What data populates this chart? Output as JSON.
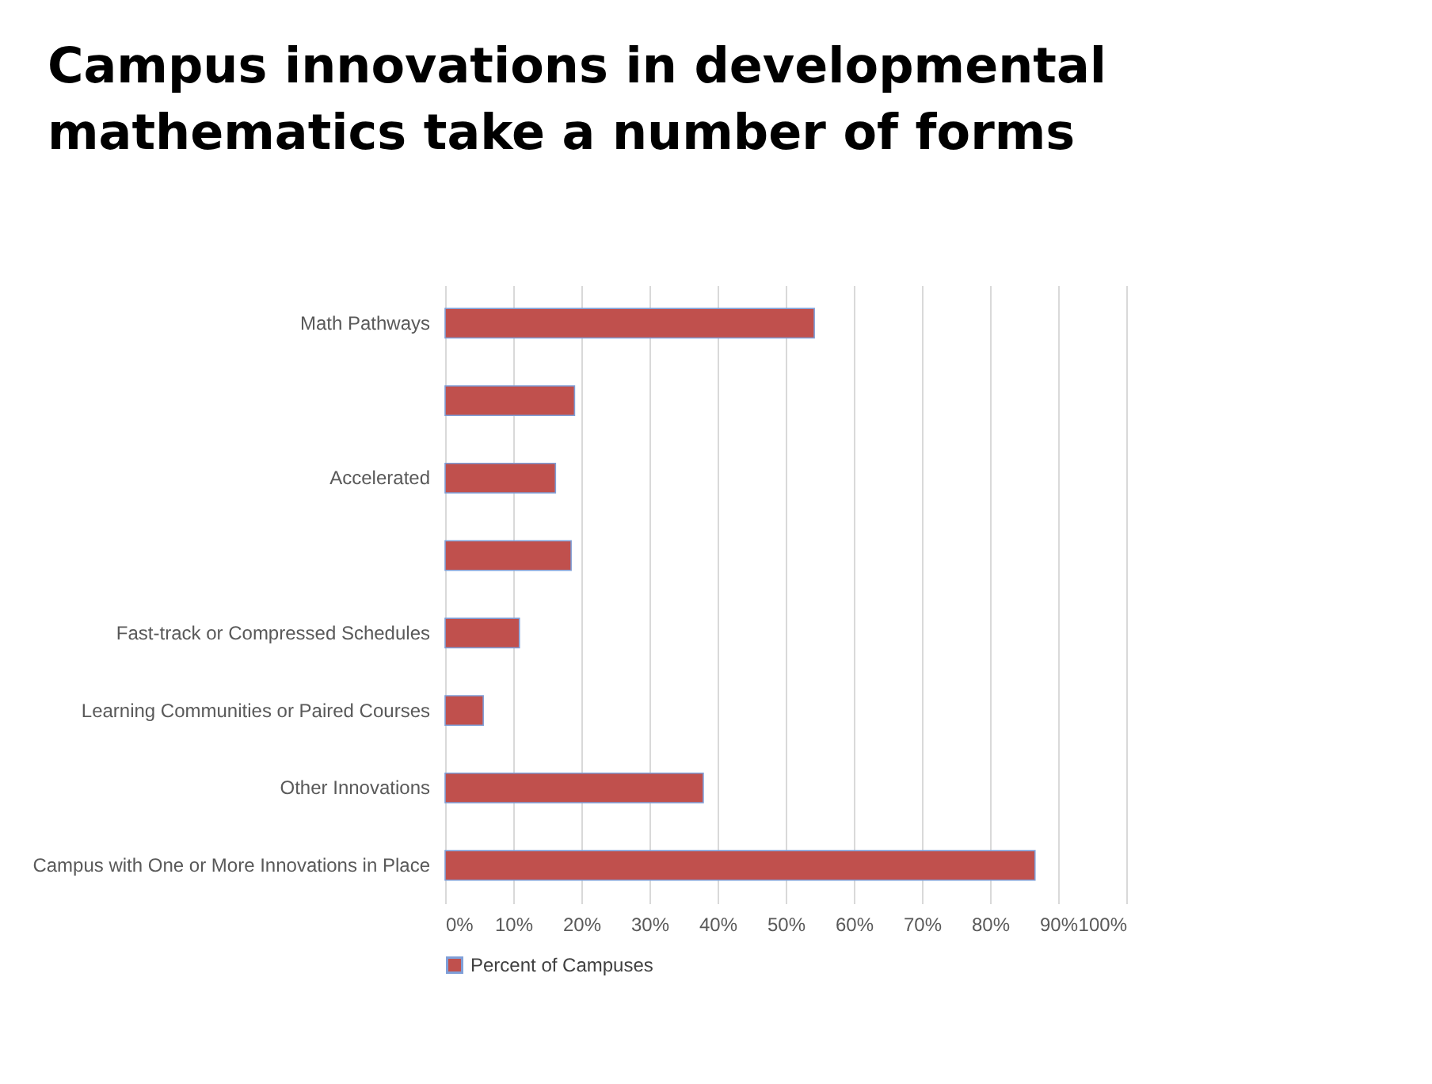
{
  "chart_data": {
    "type": "bar",
    "title": "Campus innovations in developmental mathematics take a number of forms",
    "orientation": "horizontal",
    "categories": [
      "Math Pathways",
      null,
      "Accelerated",
      null,
      "Fast-track or Compressed Schedules",
      "Learning Communities or Paired Courses",
      "Other Innovations",
      "Campus with One or More Innovations in Place"
    ],
    "series": [
      {
        "name": "Percent of Campuses",
        "color": "#c0504d",
        "values": [
          54.2,
          19,
          16.2,
          18.5,
          10.9,
          5.6,
          37.9,
          86.6
        ]
      }
    ],
    "xlim": [
      0,
      100
    ],
    "xticks": [
      {
        "value": 0,
        "label": "0%"
      },
      {
        "value": 10,
        "label": "10%"
      },
      {
        "value": 20,
        "label": "20%"
      },
      {
        "value": 30,
        "label": "30%"
      },
      {
        "value": 40,
        "label": "40%"
      },
      {
        "value": 50,
        "label": "50%"
      },
      {
        "value": 60,
        "label": "60%"
      },
      {
        "value": 70,
        "label": "70%"
      },
      {
        "value": 80,
        "label": "80%"
      },
      {
        "value": 90,
        "label": "90%"
      },
      {
        "value": 100,
        "label": "100%"
      }
    ],
    "grid": "x",
    "legend": "bottom"
  }
}
